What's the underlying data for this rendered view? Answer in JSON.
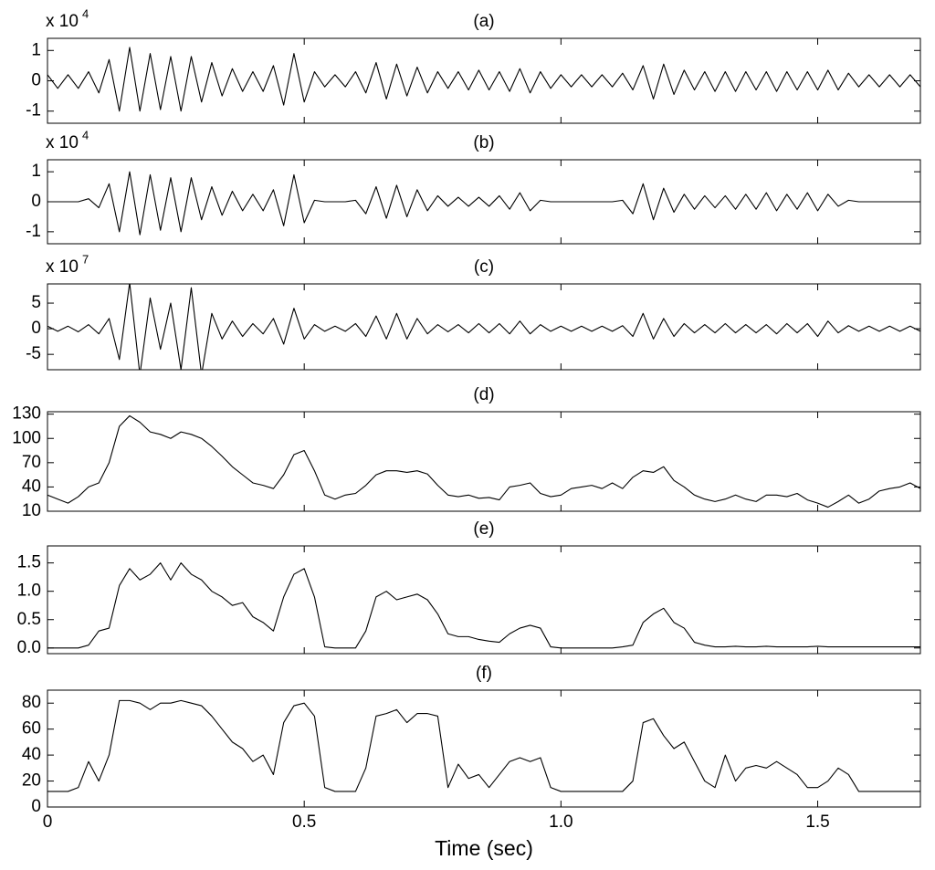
{
  "chart_data": [
    {
      "type": "line",
      "title": "(a)",
      "y_multiplier": "x 10",
      "y_multiplier_exponent": "4",
      "color": "#000000",
      "xlim": [
        0,
        1.7
      ],
      "ylim": [
        -1.4,
        1.4
      ],
      "yticks": [
        1,
        0,
        -1
      ],
      "x": [
        0,
        0.02,
        0.04,
        0.06,
        0.08,
        0.1,
        0.12,
        0.14,
        0.16,
        0.18,
        0.2,
        0.22,
        0.24,
        0.26,
        0.28,
        0.3,
        0.32,
        0.34,
        0.36,
        0.38,
        0.4,
        0.42,
        0.44,
        0.46,
        0.48,
        0.5,
        0.52,
        0.54,
        0.56,
        0.58,
        0.6,
        0.62,
        0.64,
        0.66,
        0.68,
        0.7,
        0.72,
        0.74,
        0.76,
        0.78,
        0.8,
        0.82,
        0.84,
        0.86,
        0.88,
        0.9,
        0.92,
        0.94,
        0.96,
        0.98,
        1.0,
        1.02,
        1.04,
        1.06,
        1.08,
        1.1,
        1.12,
        1.14,
        1.16,
        1.18,
        1.2,
        1.22,
        1.24,
        1.26,
        1.28,
        1.3,
        1.32,
        1.34,
        1.36,
        1.38,
        1.4,
        1.42,
        1.44,
        1.46,
        1.48,
        1.5,
        1.52,
        1.54,
        1.56,
        1.58,
        1.6,
        1.62,
        1.64,
        1.66,
        1.68,
        1.7
      ],
      "values": [
        0.2,
        -0.25,
        0.2,
        -0.25,
        0.3,
        -0.4,
        0.7,
        -1.0,
        1.1,
        -1.0,
        0.9,
        -0.95,
        0.8,
        -1.0,
        0.8,
        -0.7,
        0.6,
        -0.5,
        0.4,
        -0.35,
        0.3,
        -0.35,
        0.5,
        -0.8,
        0.9,
        -0.7,
        0.3,
        -0.2,
        0.2,
        -0.2,
        0.3,
        -0.4,
        0.6,
        -0.6,
        0.55,
        -0.5,
        0.45,
        -0.4,
        0.3,
        -0.25,
        0.3,
        -0.3,
        0.35,
        -0.3,
        0.3,
        -0.35,
        0.4,
        -0.4,
        0.3,
        -0.25,
        0.2,
        -0.2,
        0.2,
        -0.2,
        0.2,
        -0.2,
        0.25,
        -0.3,
        0.5,
        -0.6,
        0.55,
        -0.45,
        0.35,
        -0.3,
        0.3,
        -0.35,
        0.3,
        -0.35,
        0.3,
        -0.3,
        0.3,
        -0.35,
        0.3,
        -0.3,
        0.3,
        -0.3,
        0.35,
        -0.3,
        0.25,
        -0.2,
        0.2,
        -0.2,
        0.2,
        -0.2,
        0.2,
        -0.2
      ]
    },
    {
      "type": "line",
      "title": "(b)",
      "y_multiplier": "x 10",
      "y_multiplier_exponent": "4",
      "color": "#000000",
      "xlim": [
        0,
        1.7
      ],
      "ylim": [
        -1.4,
        1.4
      ],
      "yticks": [
        1,
        0,
        -1
      ],
      "x": [
        0,
        0.02,
        0.04,
        0.06,
        0.08,
        0.1,
        0.12,
        0.14,
        0.16,
        0.18,
        0.2,
        0.22,
        0.24,
        0.26,
        0.28,
        0.3,
        0.32,
        0.34,
        0.36,
        0.38,
        0.4,
        0.42,
        0.44,
        0.46,
        0.48,
        0.5,
        0.52,
        0.54,
        0.56,
        0.58,
        0.6,
        0.62,
        0.64,
        0.66,
        0.68,
        0.7,
        0.72,
        0.74,
        0.76,
        0.78,
        0.8,
        0.82,
        0.84,
        0.86,
        0.88,
        0.9,
        0.92,
        0.94,
        0.96,
        0.98,
        1.0,
        1.02,
        1.04,
        1.06,
        1.08,
        1.1,
        1.12,
        1.14,
        1.16,
        1.18,
        1.2,
        1.22,
        1.24,
        1.26,
        1.28,
        1.3,
        1.32,
        1.34,
        1.36,
        1.38,
        1.4,
        1.42,
        1.44,
        1.46,
        1.48,
        1.5,
        1.52,
        1.54,
        1.56,
        1.58,
        1.6,
        1.62,
        1.64,
        1.66,
        1.68,
        1.7
      ],
      "values": [
        0,
        0,
        0,
        0,
        0.1,
        -0.2,
        0.6,
        -1.0,
        1.0,
        -1.1,
        0.9,
        -0.95,
        0.8,
        -1.0,
        0.8,
        -0.6,
        0.5,
        -0.45,
        0.35,
        -0.3,
        0.25,
        -0.3,
        0.4,
        -0.8,
        0.9,
        -0.7,
        0.05,
        0,
        0,
        0,
        0.05,
        -0.4,
        0.5,
        -0.55,
        0.55,
        -0.5,
        0.4,
        -0.3,
        0.2,
        -0.15,
        0.15,
        -0.15,
        0.15,
        -0.15,
        0.2,
        -0.25,
        0.3,
        -0.3,
        0.05,
        0,
        0,
        0,
        0,
        0,
        0,
        0,
        0.05,
        -0.4,
        0.6,
        -0.6,
        0.45,
        -0.35,
        0.25,
        -0.25,
        0.2,
        -0.2,
        0.2,
        -0.25,
        0.25,
        -0.25,
        0.3,
        -0.3,
        0.25,
        -0.25,
        0.3,
        -0.3,
        0.25,
        -0.15,
        0.05,
        0,
        0,
        0,
        0,
        0,
        0,
        0
      ]
    },
    {
      "type": "line",
      "title": "(c)",
      "y_multiplier": "x 10",
      "y_multiplier_exponent": "7",
      "color": "#000000",
      "xlim": [
        0,
        1.7
      ],
      "ylim": [
        -8,
        8.75
      ],
      "yticks": [
        5,
        0,
        -5
      ],
      "x": [
        0,
        0.02,
        0.04,
        0.06,
        0.08,
        0.1,
        0.12,
        0.14,
        0.16,
        0.18,
        0.2,
        0.22,
        0.24,
        0.26,
        0.28,
        0.3,
        0.32,
        0.34,
        0.36,
        0.38,
        0.4,
        0.42,
        0.44,
        0.46,
        0.48,
        0.5,
        0.52,
        0.54,
        0.56,
        0.58,
        0.6,
        0.62,
        0.64,
        0.66,
        0.68,
        0.7,
        0.72,
        0.74,
        0.76,
        0.78,
        0.8,
        0.82,
        0.84,
        0.86,
        0.88,
        0.9,
        0.92,
        0.94,
        0.96,
        0.98,
        1.0,
        1.02,
        1.04,
        1.06,
        1.08,
        1.1,
        1.12,
        1.14,
        1.16,
        1.18,
        1.2,
        1.22,
        1.24,
        1.26,
        1.28,
        1.3,
        1.32,
        1.34,
        1.36,
        1.38,
        1.4,
        1.42,
        1.44,
        1.46,
        1.48,
        1.5,
        1.52,
        1.54,
        1.56,
        1.58,
        1.6,
        1.62,
        1.64,
        1.66,
        1.68,
        1.7
      ],
      "values": [
        0.5,
        -0.5,
        0.5,
        -0.6,
        0.8,
        -1,
        2,
        -6,
        9,
        -9,
        6,
        -4,
        5,
        -8,
        8,
        -9,
        3,
        -2,
        1.5,
        -1.5,
        1,
        -1,
        2,
        -3,
        4,
        -2,
        0.8,
        -0.5,
        0.5,
        -0.5,
        1,
        -1.5,
        2.5,
        -2,
        3,
        -2,
        2,
        -1,
        0.8,
        -0.6,
        0.8,
        -0.8,
        1,
        -0.8,
        1,
        -1,
        1.5,
        -1,
        0.8,
        -0.5,
        0.5,
        -0.5,
        0.5,
        -0.5,
        0.5,
        -0.5,
        0.6,
        -1.5,
        3,
        -2,
        2,
        -1.5,
        1,
        -0.8,
        0.8,
        -0.8,
        1,
        -0.8,
        0.8,
        -0.8,
        0.8,
        -1,
        1,
        -0.8,
        1,
        -1.5,
        1.5,
        -0.8,
        0.6,
        -0.5,
        0.5,
        -0.5,
        0.5,
        -0.5,
        0.5,
        -0.5
      ]
    },
    {
      "type": "line",
      "title": "(d)",
      "color": "#000000",
      "xlim": [
        0,
        1.7
      ],
      "ylim": [
        10,
        133
      ],
      "yticks": [
        130,
        100,
        70,
        40,
        10
      ],
      "x": [
        0,
        0.02,
        0.04,
        0.06,
        0.08,
        0.1,
        0.12,
        0.14,
        0.16,
        0.18,
        0.2,
        0.22,
        0.24,
        0.26,
        0.28,
        0.3,
        0.32,
        0.34,
        0.36,
        0.38,
        0.4,
        0.42,
        0.44,
        0.46,
        0.48,
        0.5,
        0.52,
        0.54,
        0.56,
        0.58,
        0.6,
        0.62,
        0.64,
        0.66,
        0.68,
        0.7,
        0.72,
        0.74,
        0.76,
        0.78,
        0.8,
        0.82,
        0.84,
        0.86,
        0.88,
        0.9,
        0.92,
        0.94,
        0.96,
        0.98,
        1.0,
        1.02,
        1.04,
        1.06,
        1.08,
        1.1,
        1.12,
        1.14,
        1.16,
        1.18,
        1.2,
        1.22,
        1.24,
        1.26,
        1.28,
        1.3,
        1.32,
        1.34,
        1.36,
        1.38,
        1.4,
        1.42,
        1.44,
        1.46,
        1.48,
        1.5,
        1.52,
        1.54,
        1.56,
        1.58,
        1.6,
        1.62,
        1.64,
        1.66,
        1.68,
        1.7
      ],
      "values": [
        30,
        25,
        20,
        28,
        40,
        45,
        70,
        115,
        128,
        120,
        108,
        105,
        100,
        108,
        105,
        100,
        90,
        78,
        65,
        55,
        45,
        42,
        38,
        55,
        80,
        85,
        60,
        30,
        25,
        30,
        32,
        42,
        55,
        60,
        60,
        58,
        60,
        56,
        42,
        30,
        28,
        30,
        26,
        27,
        24,
        40,
        42,
        45,
        32,
        28,
        30,
        38,
        40,
        42,
        38,
        45,
        38,
        52,
        60,
        58,
        65,
        48,
        40,
        30,
        25,
        22,
        25,
        30,
        25,
        22,
        30,
        30,
        28,
        32,
        24,
        20,
        15,
        22,
        30,
        20,
        25,
        35,
        38,
        40,
        45,
        38
      ]
    },
    {
      "type": "line",
      "title": "(e)",
      "color": "#000000",
      "xlim": [
        0,
        1.7
      ],
      "ylim": [
        -0.1,
        1.8
      ],
      "yticks": [
        1.5,
        {
          "value": 1,
          "label": "1.0"
        },
        0.5,
        {
          "value": 0,
          "label": "0.0"
        }
      ],
      "x": [
        0,
        0.02,
        0.04,
        0.06,
        0.08,
        0.1,
        0.12,
        0.14,
        0.16,
        0.18,
        0.2,
        0.22,
        0.24,
        0.26,
        0.28,
        0.3,
        0.32,
        0.34,
        0.36,
        0.38,
        0.4,
        0.42,
        0.44,
        0.46,
        0.48,
        0.5,
        0.52,
        0.54,
        0.56,
        0.58,
        0.6,
        0.62,
        0.64,
        0.66,
        0.68,
        0.7,
        0.72,
        0.74,
        0.76,
        0.78,
        0.8,
        0.82,
        0.84,
        0.86,
        0.88,
        0.9,
        0.92,
        0.94,
        0.96,
        0.98,
        1.0,
        1.02,
        1.04,
        1.06,
        1.08,
        1.1,
        1.12,
        1.14,
        1.16,
        1.18,
        1.2,
        1.22,
        1.24,
        1.26,
        1.28,
        1.3,
        1.32,
        1.34,
        1.36,
        1.38,
        1.4,
        1.42,
        1.44,
        1.46,
        1.48,
        1.5,
        1.52,
        1.54,
        1.56,
        1.58,
        1.6,
        1.62,
        1.64,
        1.66,
        1.68,
        1.7
      ],
      "values": [
        0,
        0,
        0,
        0,
        0.05,
        0.3,
        0.35,
        1.1,
        1.4,
        1.2,
        1.3,
        1.5,
        1.2,
        1.5,
        1.3,
        1.2,
        1.0,
        0.9,
        0.75,
        0.8,
        0.55,
        0.45,
        0.3,
        0.9,
        1.3,
        1.4,
        0.9,
        0.02,
        0,
        0,
        0,
        0.3,
        0.9,
        1.0,
        0.85,
        0.9,
        0.95,
        0.85,
        0.6,
        0.25,
        0.2,
        0.2,
        0.15,
        0.12,
        0.1,
        0.25,
        0.35,
        0.4,
        0.35,
        0.02,
        0,
        0,
        0,
        0,
        0,
        0,
        0.02,
        0.05,
        0.45,
        0.6,
        0.7,
        0.45,
        0.35,
        0.1,
        0.05,
        0.02,
        0.02,
        0.03,
        0.02,
        0.02,
        0.03,
        0.02,
        0.02,
        0.02,
        0.02,
        0.03,
        0.02,
        0.02,
        0.02,
        0.02,
        0.02,
        0.02,
        0.02,
        0.02,
        0.02,
        0.02
      ]
    },
    {
      "type": "line",
      "title": "(f)",
      "color": "#000000",
      "xlabel": "Time (sec)",
      "xlim": [
        0,
        1.7
      ],
      "ylim": [
        0,
        90
      ],
      "yticks": [
        80,
        60,
        40,
        20,
        0
      ],
      "xticks": [
        0,
        0.5,
        {
          "value": 1,
          "label": "1.0"
        },
        1.5
      ],
      "x": [
        0,
        0.02,
        0.04,
        0.06,
        0.08,
        0.1,
        0.12,
        0.14,
        0.16,
        0.18,
        0.2,
        0.22,
        0.24,
        0.26,
        0.28,
        0.3,
        0.32,
        0.34,
        0.36,
        0.38,
        0.4,
        0.42,
        0.44,
        0.46,
        0.48,
        0.5,
        0.52,
        0.54,
        0.56,
        0.58,
        0.6,
        0.62,
        0.64,
        0.66,
        0.68,
        0.7,
        0.72,
        0.74,
        0.76,
        0.78,
        0.8,
        0.82,
        0.84,
        0.86,
        0.88,
        0.9,
        0.92,
        0.94,
        0.96,
        0.98,
        1.0,
        1.02,
        1.04,
        1.06,
        1.08,
        1.1,
        1.12,
        1.14,
        1.16,
        1.18,
        1.2,
        1.22,
        1.24,
        1.26,
        1.28,
        1.3,
        1.32,
        1.34,
        1.36,
        1.38,
        1.4,
        1.42,
        1.44,
        1.46,
        1.48,
        1.5,
        1.52,
        1.54,
        1.56,
        1.58,
        1.6,
        1.62,
        1.64,
        1.66,
        1.68,
        1.7
      ],
      "values": [
        12,
        12,
        12,
        15,
        35,
        20,
        40,
        82,
        82,
        80,
        75,
        80,
        80,
        82,
        80,
        78,
        70,
        60,
        50,
        45,
        35,
        40,
        25,
        65,
        78,
        80,
        70,
        15,
        12,
        12,
        12,
        30,
        70,
        72,
        75,
        65,
        72,
        72,
        70,
        15,
        33,
        22,
        25,
        15,
        25,
        35,
        38,
        35,
        38,
        15,
        12,
        12,
        12,
        12,
        12,
        12,
        12,
        20,
        65,
        68,
        55,
        45,
        50,
        35,
        20,
        15,
        40,
        20,
        30,
        32,
        30,
        35,
        30,
        25,
        15,
        15,
        20,
        30,
        25,
        12,
        12,
        12,
        12,
        12,
        12,
        12
      ]
    }
  ]
}
